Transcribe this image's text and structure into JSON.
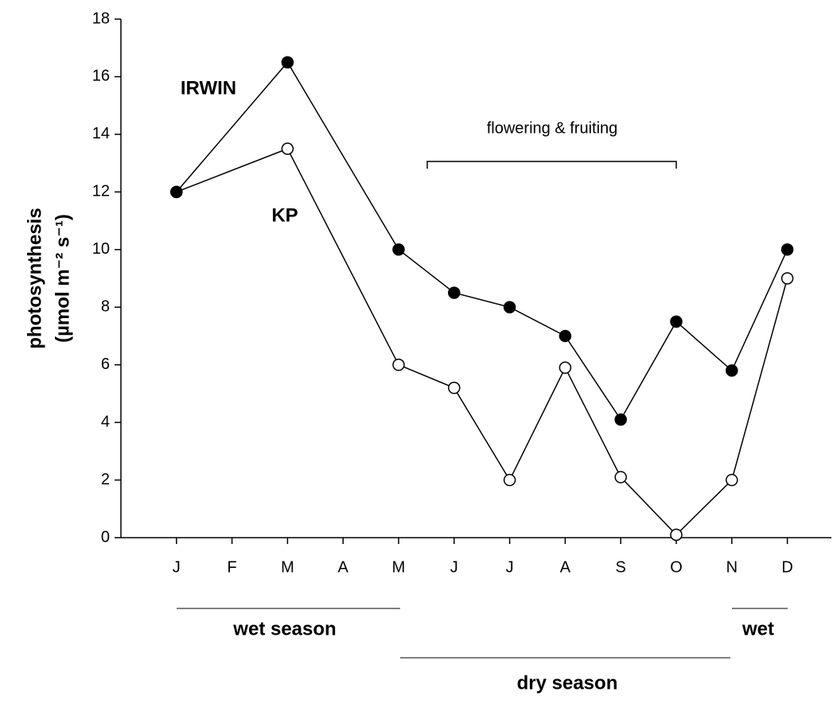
{
  "chart_data": {
    "type": "line",
    "y_label": "photosynthesis",
    "y_label_units": "(µmol m⁻² s⁻¹)",
    "categories": [
      "J",
      "F",
      "M",
      "A",
      "M",
      "J",
      "J",
      "A",
      "S",
      "O",
      "N",
      "D"
    ],
    "series": [
      {
        "name": "IRWIN",
        "color": "#000000",
        "values": [
          12,
          null,
          16.5,
          null,
          10,
          8.5,
          8,
          7,
          4.1,
          7.5,
          5.8,
          10
        ]
      },
      {
        "name": "KP",
        "color": "#ffffff",
        "values": [
          12,
          null,
          13.5,
          null,
          6,
          5.2,
          2,
          5.9,
          2.1,
          0.1,
          2,
          9
        ]
      }
    ],
    "annotations": [
      "flowering & fruiting",
      "wet season",
      "wet",
      "dry season"
    ],
    "ylim": [
      0,
      18
    ],
    "yticks": [
      0,
      2,
      4,
      6,
      8,
      10,
      12,
      14,
      16,
      18
    ]
  }
}
